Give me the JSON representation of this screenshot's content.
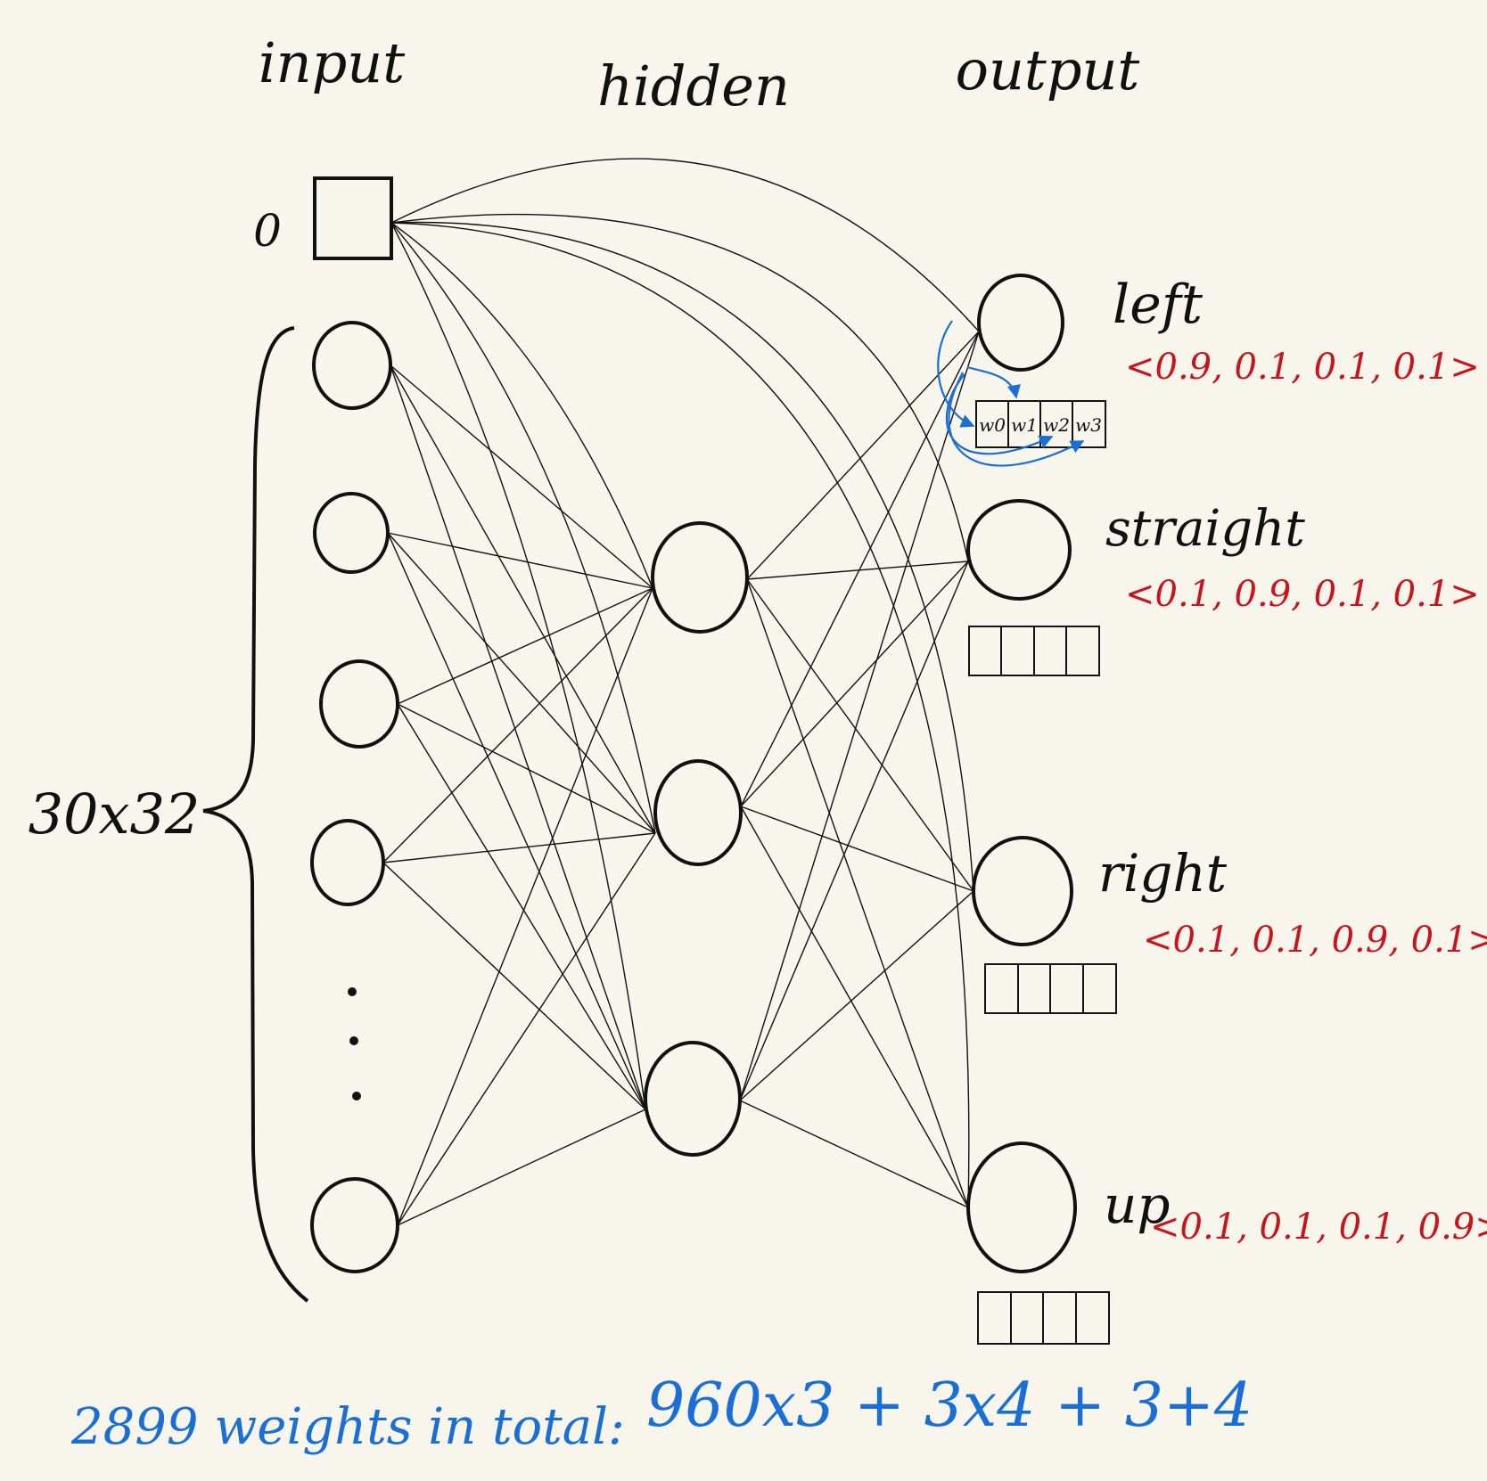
{
  "layers": {
    "input": "input",
    "hidden": "hidden",
    "output": "output"
  },
  "bias_label": "0",
  "input_size_label": "30x32",
  "outputs": [
    {
      "label": "left",
      "target": "<0.9, 0.1, 0.1, 0.1>"
    },
    {
      "label": "straight",
      "target": "<0.1, 0.9, 0.1, 0.1>"
    },
    {
      "label": "right",
      "target": "<0.1, 0.1, 0.9, 0.1>"
    },
    {
      "label": "up",
      "target": "<0.1, 0.1, 0.1, 0.9>"
    }
  ],
  "weight_cells": [
    "w0",
    "w1",
    "w2",
    "w3"
  ],
  "summary": "2899 weights in total:",
  "formula": "960x3 + 3x4 + 3+4",
  "colors": {
    "ink": "#111111",
    "targets": "#c8141b",
    "annotation": "#1a6fd6",
    "background": "#f8f6ec"
  }
}
